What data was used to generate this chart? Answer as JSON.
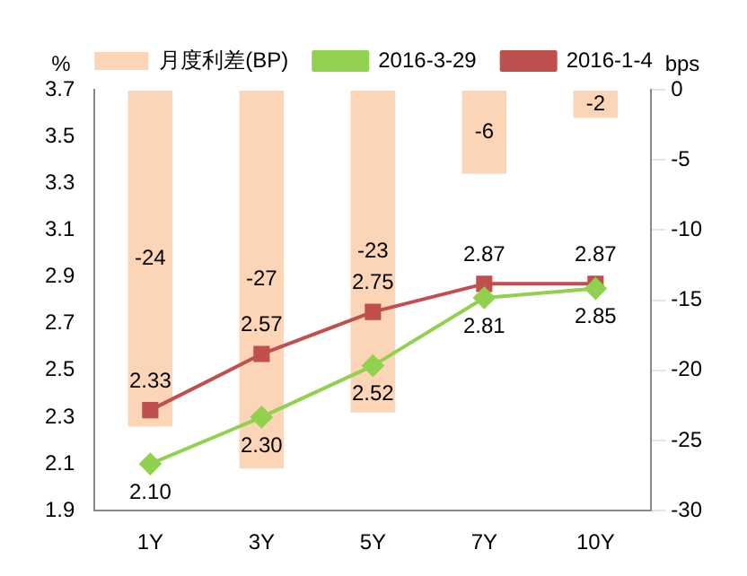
{
  "chart_data": {
    "type": "bar",
    "categories": [
      "1Y",
      "3Y",
      "5Y",
      "7Y",
      "10Y"
    ],
    "ylabel": "%",
    "y2label": "bps",
    "ylim": [
      1.9,
      3.7
    ],
    "yticks": [
      1.9,
      2.1,
      2.3,
      2.5,
      2.7,
      2.9,
      3.1,
      3.3,
      3.5,
      3.7
    ],
    "y2lim": [
      -30,
      0
    ],
    "y2ticks": [
      -30,
      -25,
      -20,
      -15,
      -10,
      -5,
      0
    ],
    "legend": "top",
    "data_labels": true,
    "series": [
      {
        "name": "月度利差(BP)",
        "axis": "y2",
        "color": "#fbd5b5",
        "values": [
          -24,
          -27,
          -23,
          -6,
          -2
        ]
      },
      {
        "name": "2016-3-29",
        "type": "line",
        "axis": "y",
        "color": "#92d050",
        "marker": "diamond",
        "values": [
          2.1,
          2.3,
          2.52,
          2.81,
          2.85
        ],
        "value_labels": [
          "2.10",
          "2.30",
          "2.52",
          "2.81",
          "2.85"
        ]
      },
      {
        "name": "2016-1-4",
        "type": "line",
        "axis": "y",
        "color": "#c0504d",
        "marker": "square",
        "values": [
          2.33,
          2.57,
          2.75,
          2.87,
          2.87
        ],
        "value_labels": [
          "2.33",
          "2.57",
          "2.75",
          "2.87",
          "2.87"
        ]
      }
    ]
  }
}
